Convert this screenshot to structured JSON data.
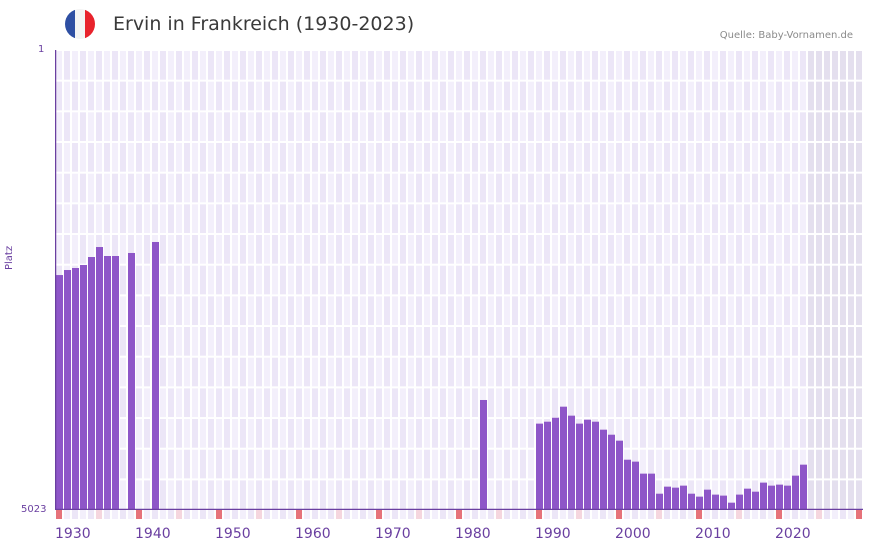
{
  "header": {
    "title": "Ervin in Frankreich (1930-2023)",
    "source": "Quelle: Baby-Vornamen.de",
    "flag_colors": [
      "#2e4fa3",
      "#f4f4f4",
      "#e8232c"
    ]
  },
  "colors": {
    "bar": "#8e56c8",
    "axis": "#6a3fa0",
    "grid_bg_a": "#f3effb",
    "grid_bg_b": "#ece6f7",
    "future_bg": "#e4dfee",
    "decade_marker": "#e6727a",
    "half_decade_marker": "#f5d6de"
  },
  "chart_data": {
    "type": "bar",
    "title": "Ervin in Frankreich (1930-2023)",
    "xlabel": "",
    "ylabel": "Platz",
    "y_inverted": true,
    "ylim": [
      1,
      5023
    ],
    "xlim": [
      1930,
      2030
    ],
    "x_ticks": [
      "1930",
      "1940",
      "1950",
      "1960",
      "1970",
      "1980",
      "1990",
      "2000",
      "2010",
      "2020"
    ],
    "y_ticks": [
      "1",
      "5023"
    ],
    "grid": true,
    "legend": null,
    "x": [
      1930,
      1931,
      1932,
      1933,
      1934,
      1935,
      1936,
      1937,
      1939,
      1942,
      1983,
      1990,
      1991,
      1992,
      1993,
      1994,
      1995,
      1996,
      1997,
      1998,
      1999,
      2000,
      2001,
      2002,
      2003,
      2004,
      2005,
      2006,
      2007,
      2008,
      2009,
      2010,
      2011,
      2012,
      2013,
      2014,
      2015,
      2016,
      2017,
      2018,
      2019,
      2020,
      2021,
      2022,
      2023
    ],
    "values": [
      2458,
      2403,
      2381,
      2348,
      2261,
      2152,
      2250,
      2250,
      2217,
      2097,
      3822,
      4080,
      4059,
      4015,
      3895,
      3993,
      4080,
      4037,
      4059,
      4146,
      4201,
      4266,
      4474,
      4495,
      4626,
      4626,
      4845,
      4768,
      4779,
      4757,
      4845,
      4877,
      4801,
      4855,
      4866,
      4943,
      4855,
      4790,
      4823,
      4724,
      4757,
      4746,
      4757,
      4648,
      4528
    ]
  },
  "axis": {
    "y_top_label": "1",
    "y_bottom_label": "5023",
    "y_title": "Platz"
  }
}
